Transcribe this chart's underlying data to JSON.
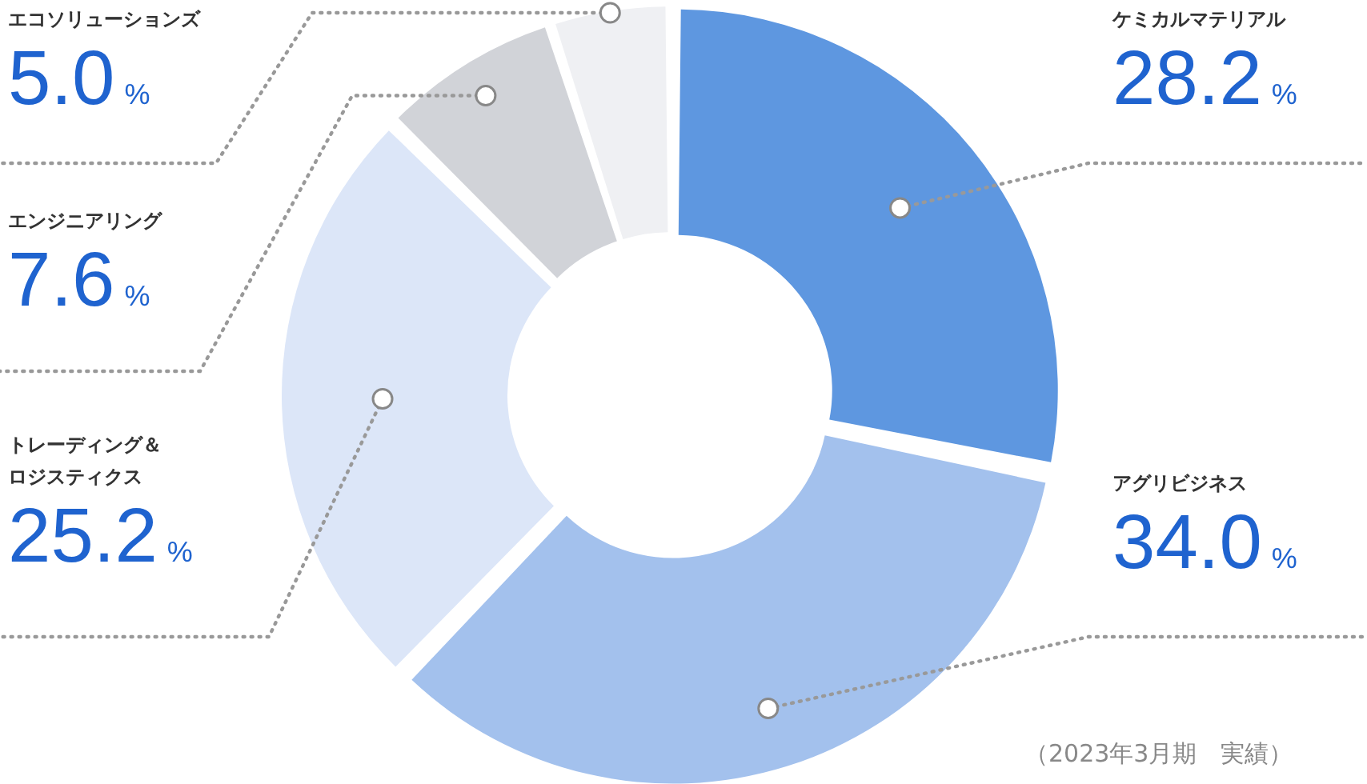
{
  "chart_data": {
    "type": "donut",
    "categories": [
      "ケミカルマテリアル",
      "アグリビジネス",
      "トレーディング＆ロジスティクス",
      "エンジニアリング",
      "エコソリューションズ"
    ],
    "values": [
      28.2,
      34.0,
      25.2,
      7.6,
      5.0
    ],
    "value_labels": [
      "28.2%",
      "34.0%",
      "25.2%",
      "7.6%",
      "5.0%"
    ],
    "colors": [
      "#5e97e0",
      "#a3c1ed",
      "#dce6f8",
      "#d1d3d8",
      "#eff0f3"
    ],
    "annotations": [
      "（2023年3月期　実績）"
    ]
  }
}
